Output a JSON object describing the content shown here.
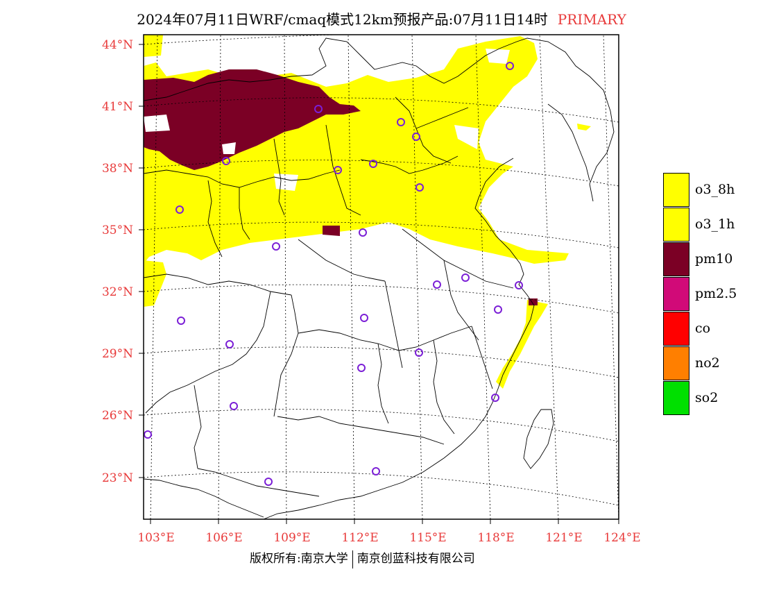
{
  "title": {
    "main": "2024年07月11日WRF/cmaq模式12km预报产品:07月11日14时",
    "tag": "PRIMARY",
    "tag_color": "#e83a3a"
  },
  "axes": {
    "lat_labels": [
      "44°N",
      "41°N",
      "38°N",
      "35°N",
      "32°N",
      "29°N",
      "26°N",
      "23°N"
    ],
    "lon_labels": [
      "103°E",
      "106°E",
      "109°E",
      "112°E",
      "115°E",
      "118°E",
      "121°E",
      "124°E"
    ],
    "label_color": "#e83a3a"
  },
  "legend": {
    "items": [
      {
        "label": "o3_8h",
        "color": "#ffff00"
      },
      {
        "label": "o3_1h",
        "color": "#ffff00"
      },
      {
        "label": "pm10",
        "color": "#7b0025"
      },
      {
        "label": "pm2.5",
        "color": "#d10a78"
      },
      {
        "label": "co",
        "color": "#ff0000"
      },
      {
        "label": "no2",
        "color": "#ff7f00"
      },
      {
        "label": "so2",
        "color": "#00e000"
      }
    ]
  },
  "stations_marker": "purple-circle",
  "copyright": {
    "left": "版权所有:南京大学",
    "right": "南京创蓝科技有限公司"
  }
}
